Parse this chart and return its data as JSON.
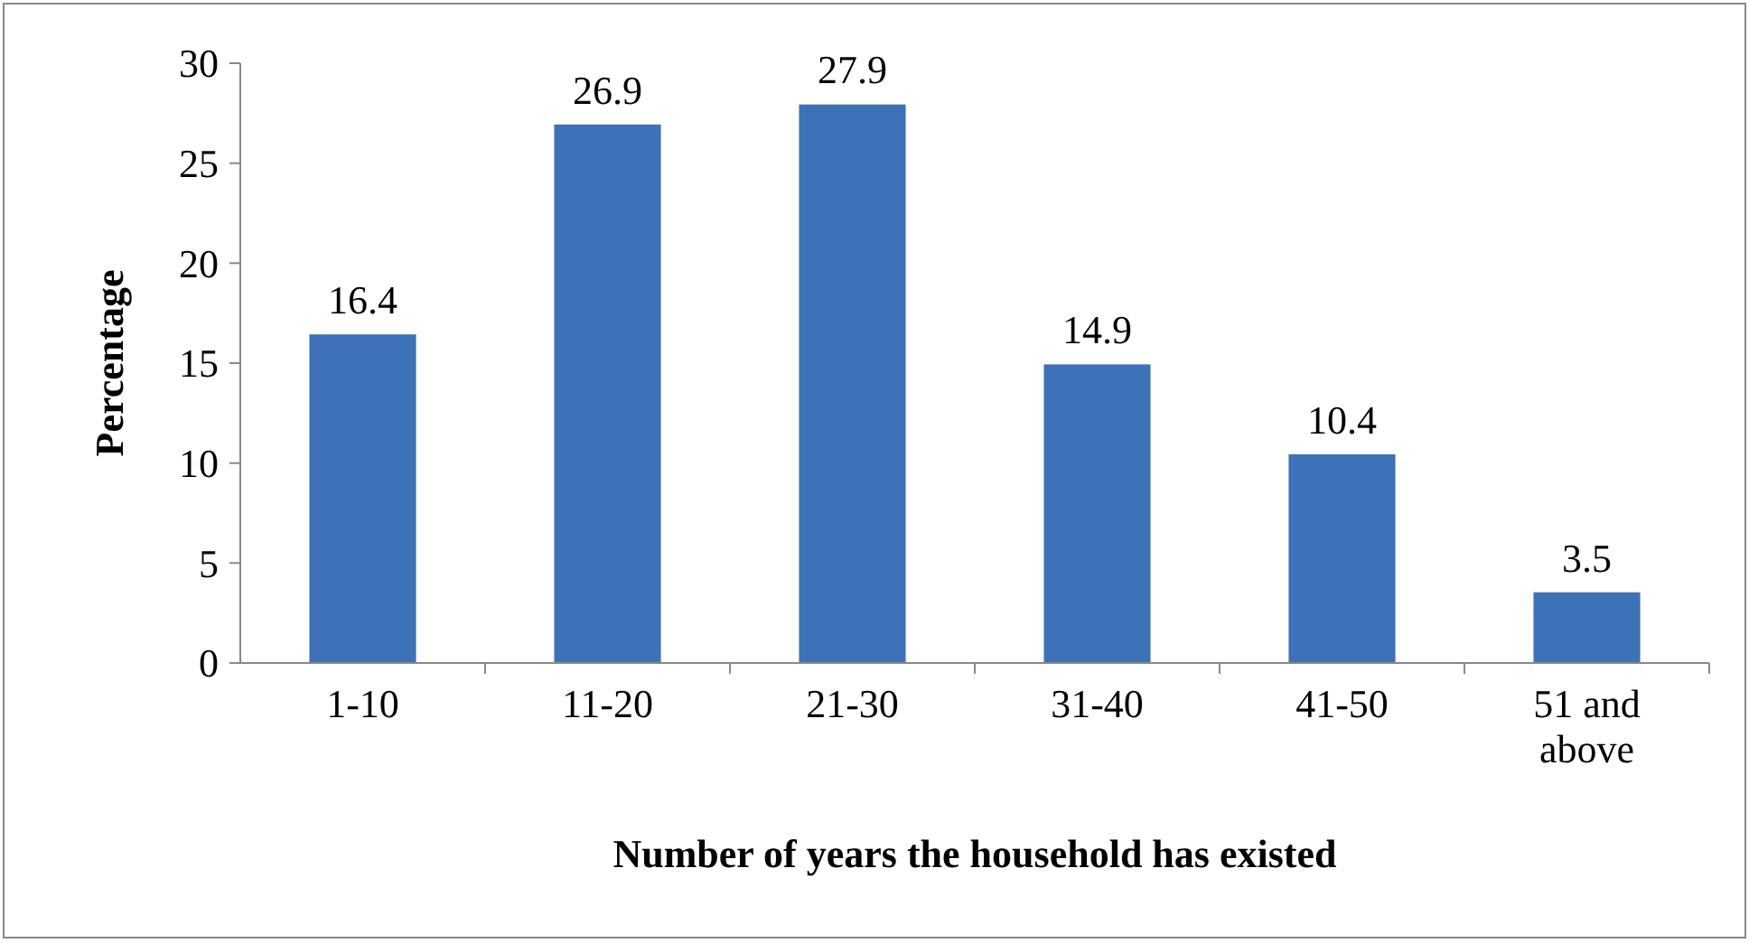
{
  "chart_data": {
    "type": "bar",
    "xlabel": "Number of years the household has existed",
    "ylabel": "Percentage",
    "categories": [
      "1-10",
      "11-20",
      "21-30",
      "31-40",
      "41-50",
      "51 and above"
    ],
    "values": [
      16.4,
      26.9,
      27.9,
      14.9,
      10.4,
      3.5
    ],
    "color": "#3d72b8",
    "ylim": [
      0,
      30
    ],
    "yticks": [
      0,
      5,
      10,
      15,
      20,
      25,
      30
    ],
    "data_labels": true,
    "grid": false
  }
}
